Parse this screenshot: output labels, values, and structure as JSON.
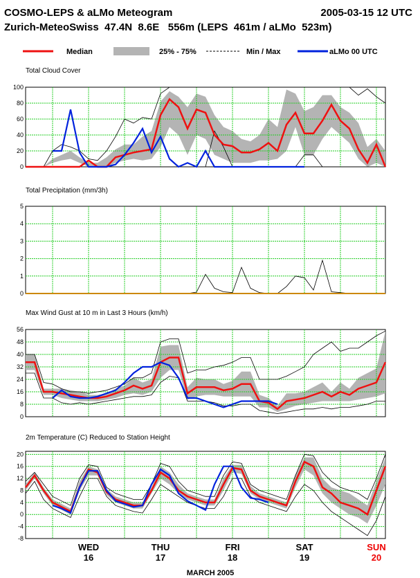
{
  "header": {
    "title_left": "COSMO-LEPS & aLMo Meteogram",
    "title_right": "2005-03-15 12 UTC",
    "location_line": "Zurich-MeteoSwiss  47.4N  8.6E   556m (LEPS  461m / aLMo  523m)"
  },
  "legend": {
    "median": "Median",
    "iqr": "25% - 75%",
    "minmax": "Min / Max",
    "almo": "aLMo 00 UTC"
  },
  "colors": {
    "median": "#ee1111",
    "iqr": "#b4b4b4",
    "minmax": "#000000",
    "almo": "#0022dd",
    "grid": "#22cc22",
    "precip_zero": "#cc8800",
    "sunday": "#ee0000"
  },
  "x_axis": {
    "days": [
      {
        "name": "WED",
        "num": "16",
        "color": "#000000"
      },
      {
        "name": "THU",
        "num": "17",
        "color": "#000000"
      },
      {
        "name": "FRI",
        "num": "18",
        "color": "#000000"
      },
      {
        "name": "SAT",
        "num": "19",
        "color": "#000000"
      },
      {
        "name": "SUN",
        "num": "20",
        "color": "#ee0000"
      }
    ],
    "month": "MARCH     2005",
    "start": "2005-03-15 12 UTC",
    "step_hours": 3,
    "steps": 41
  },
  "chart_data": [
    {
      "type": "line",
      "title": "Total Cloud Cover",
      "ylim": [
        0,
        100
      ],
      "yticks": [
        0,
        20,
        40,
        60,
        80,
        100
      ],
      "x_step_hours": 3,
      "series": [
        {
          "name": "Median",
          "values": [
            0,
            0,
            0,
            0,
            0,
            0,
            0,
            8,
            0,
            0,
            12,
            15,
            18,
            20,
            22,
            65,
            85,
            75,
            48,
            72,
            68,
            40,
            28,
            26,
            18,
            18,
            22,
            30,
            20,
            53,
            68,
            42,
            42,
            58,
            78,
            58,
            48,
            22,
            5,
            28,
            0
          ]
        },
        {
          "name": "25% - 75%",
          "kind": "band",
          "low": [
            0,
            0,
            0,
            5,
            8,
            10,
            5,
            0,
            0,
            0,
            5,
            8,
            10,
            8,
            10,
            25,
            50,
            40,
            15,
            40,
            35,
            15,
            10,
            5,
            5,
            5,
            8,
            8,
            10,
            20,
            50,
            15,
            15,
            35,
            50,
            40,
            30,
            10,
            0,
            5,
            0
          ],
          "high": [
            0,
            0,
            0,
            10,
            15,
            20,
            12,
            5,
            5,
            12,
            22,
            28,
            28,
            38,
            45,
            82,
            95,
            88,
            75,
            92,
            88,
            65,
            50,
            45,
            35,
            32,
            40,
            60,
            50,
            97,
            92,
            70,
            75,
            90,
            90,
            75,
            68,
            55,
            25,
            35,
            20
          ]
        },
        {
          "name": "Min / Max",
          "kind": "minmax",
          "min": [
            0,
            0,
            0,
            0,
            0,
            0,
            0,
            0,
            0,
            0,
            0,
            0,
            0,
            0,
            0,
            0,
            0,
            0,
            0,
            0,
            0,
            45,
            25,
            0,
            0,
            0,
            0,
            0,
            0,
            0,
            0,
            15,
            15,
            0,
            0,
            0,
            0,
            0,
            0,
            0,
            0
          ],
          "max": [
            0,
            0,
            0,
            20,
            28,
            25,
            20,
            10,
            8,
            20,
            38,
            60,
            55,
            62,
            60,
            92,
            100,
            100,
            100,
            100,
            100,
            100,
            100,
            100,
            100,
            100,
            100,
            100,
            100,
            100,
            100,
            100,
            100,
            100,
            100,
            100,
            100,
            90,
            98,
            88,
            80
          ]
        },
        {
          "name": "aLMo 00 UTC",
          "start_index": 3,
          "values": [
            20,
            20,
            72,
            18,
            0,
            0,
            0,
            3,
            15,
            30,
            48,
            18,
            38,
            10,
            0,
            5,
            0,
            20,
            0,
            0,
            0,
            0,
            0,
            0,
            0,
            0,
            0,
            0,
            0
          ]
        }
      ]
    },
    {
      "type": "line",
      "title": "Total Precipitation (mm/3h)",
      "ylim": [
        0,
        5
      ],
      "yticks": [
        0,
        1,
        2,
        3,
        4,
        5
      ],
      "x_step_hours": 3,
      "series": [
        {
          "name": "Median",
          "values": [
            0,
            0,
            0,
            0,
            0,
            0,
            0,
            0,
            0,
            0,
            0,
            0,
            0,
            0,
            0,
            0,
            0,
            0,
            0,
            0,
            0,
            0,
            0,
            0,
            0,
            0,
            0,
            0,
            0,
            0,
            0,
            0,
            0,
            0,
            0,
            0,
            0,
            0,
            0,
            0,
            0
          ]
        },
        {
          "name": "Min / Max",
          "kind": "minmax",
          "min": [
            0,
            0,
            0,
            0,
            0,
            0,
            0,
            0,
            0,
            0,
            0,
            0,
            0,
            0,
            0,
            0,
            0,
            0,
            0,
            0,
            0,
            0,
            0,
            0,
            0,
            0,
            0,
            0,
            0,
            0,
            0,
            0,
            0,
            0,
            0,
            0,
            0,
            0,
            0,
            0,
            0
          ],
          "max": [
            0,
            0,
            0,
            0,
            0,
            0,
            0,
            0,
            0,
            0,
            0,
            0,
            0,
            0,
            0,
            0,
            0,
            0,
            0,
            0.08,
            1.1,
            0.3,
            0.1,
            0.05,
            1.5,
            0.3,
            0.05,
            0,
            0,
            0.4,
            1.0,
            0.9,
            0.2,
            1.9,
            0.1,
            0.05,
            0,
            0,
            0,
            0,
            0
          ]
        },
        {
          "name": "aLMo 00 UTC",
          "start_index": 3,
          "values": [
            0,
            0,
            0,
            0,
            0,
            0,
            0,
            0,
            0,
            0,
            0,
            0,
            0,
            0,
            0,
            0,
            0,
            0,
            0,
            0,
            0,
            0,
            0,
            0,
            0,
            0,
            0,
            0,
            0
          ]
        }
      ]
    },
    {
      "type": "line",
      "title": "Max Wind Gust at 10 m in Last 3 Hours (km/h)",
      "ylim": [
        0,
        56
      ],
      "yticks": [
        0,
        8,
        16,
        24,
        32,
        40,
        48,
        56
      ],
      "x_step_hours": 3,
      "series": [
        {
          "name": "Median",
          "values": [
            35,
            35,
            16,
            16,
            15,
            14,
            13,
            12,
            12,
            13,
            15,
            17,
            20,
            18,
            20,
            35,
            38,
            38,
            15,
            19,
            19,
            19,
            17,
            18,
            21,
            21,
            10,
            9,
            5,
            10,
            11,
            12,
            14,
            16,
            13,
            16,
            14,
            18,
            20,
            22,
            35
          ]
        },
        {
          "name": "25% - 75%",
          "kind": "band",
          "low": [
            30,
            30,
            14,
            14,
            12,
            11,
            10,
            10,
            10,
            11,
            12,
            14,
            15,
            14,
            16,
            25,
            30,
            30,
            11,
            13,
            14,
            14,
            13,
            13,
            13,
            13,
            6,
            6,
            3,
            5,
            7,
            8,
            9,
            10,
            10,
            10,
            10,
            11,
            12,
            13,
            15
          ]
        },
        {
          "name": "Min / Max",
          "kind": "minmax",
          "min": [
            28,
            28,
            12,
            12,
            9,
            8,
            9,
            8,
            9,
            10,
            11,
            12,
            13,
            13,
            14,
            22,
            26,
            25,
            10,
            10,
            10,
            9,
            7,
            7,
            8,
            8,
            4,
            3,
            2,
            3,
            4,
            5,
            5,
            6,
            5,
            6,
            6,
            7,
            8,
            10,
            10
          ],
          "max": [
            40,
            40,
            22,
            21,
            18,
            16,
            16,
            15,
            16,
            17,
            19,
            21,
            25,
            25,
            28,
            48,
            50,
            50,
            28,
            30,
            30,
            32,
            33,
            35,
            38,
            38,
            24,
            24,
            24,
            26,
            29,
            32,
            40,
            44,
            48,
            42,
            44,
            44,
            48,
            52,
            55
          ]
        },
        {
          "name": "aLMo 00 UTC",
          "start_index": 3,
          "values": [
            12,
            17,
            13,
            12,
            12,
            13,
            15,
            17,
            22,
            28,
            32,
            32,
            35,
            33,
            25,
            12,
            12,
            10,
            8,
            6,
            8,
            10,
            10,
            10,
            10,
            8
          ]
        }
      ]
    },
    {
      "type": "line",
      "title": "2m Temperature (C) Reduced to Station Height",
      "ylim": [
        -8,
        21
      ],
      "yticks": [
        -8,
        -4,
        0,
        4,
        8,
        12,
        16,
        20
      ],
      "x_step_hours": 3,
      "series": [
        {
          "name": "Median",
          "values": [
            9,
            13,
            8,
            4,
            2.5,
            1,
            9,
            15,
            14,
            7.5,
            5,
            4,
            3,
            3,
            8,
            14,
            12,
            8,
            6,
            5,
            4,
            4,
            10,
            15.5,
            15,
            8,
            6,
            5,
            4,
            3,
            11,
            17.5,
            16,
            9,
            7,
            4,
            3,
            2,
            0,
            8,
            16
          ]
        },
        {
          "name": "25% - 75%",
          "kind": "band",
          "low": [
            8,
            12,
            7,
            3,
            1.5,
            0,
            8,
            13,
            13,
            6.5,
            4,
            3,
            2,
            2,
            7,
            12,
            10,
            7,
            5,
            4,
            3,
            3,
            8,
            14,
            13.5,
            7,
            5,
            4,
            3,
            2,
            9,
            15,
            13,
            7,
            4,
            2,
            0,
            -1,
            -3,
            3,
            10
          ],
          "high": [
            10,
            14,
            9,
            5,
            3.5,
            2,
            11,
            16,
            15,
            8.5,
            6,
            5,
            4,
            4,
            9,
            16,
            14,
            10,
            7,
            6,
            5,
            5,
            12,
            16.5,
            16.5,
            9.5,
            7,
            6,
            5,
            4,
            13,
            19,
            19,
            12,
            9,
            8,
            7,
            5,
            3,
            11,
            19
          ]
        },
        {
          "name": "Min / Max",
          "kind": "minmax",
          "min": [
            7,
            11,
            5,
            2,
            0.5,
            -1,
            6,
            12,
            12,
            6,
            3,
            2,
            1,
            0.5,
            5,
            10,
            8,
            6,
            4,
            3,
            2,
            2,
            6,
            12,
            12,
            6,
            4,
            3,
            2,
            1,
            6,
            10,
            8,
            4,
            1,
            -1,
            -3,
            -5,
            -7,
            -2,
            6
          ],
          "max": [
            11,
            14,
            10,
            6,
            4.5,
            3,
            12,
            16.5,
            16,
            9,
            7,
            6,
            5,
            5,
            10,
            17,
            16,
            11,
            8,
            7,
            6,
            6,
            13,
            17.5,
            17,
            10,
            8,
            7,
            6,
            5,
            13,
            20,
            19.5,
            14,
            11,
            9,
            8,
            7,
            5,
            12,
            20
          ]
        },
        {
          "name": "aLMo 00 UTC",
          "start_index": 3,
          "values": [
            3,
            2,
            0.5,
            9,
            14.5,
            14.5,
            8,
            4.5,
            3.5,
            2.5,
            3,
            10,
            15,
            13,
            7,
            4.5,
            3,
            1.5,
            10,
            16,
            16,
            9,
            5.5,
            5,
            4
          ]
        }
      ]
    }
  ]
}
